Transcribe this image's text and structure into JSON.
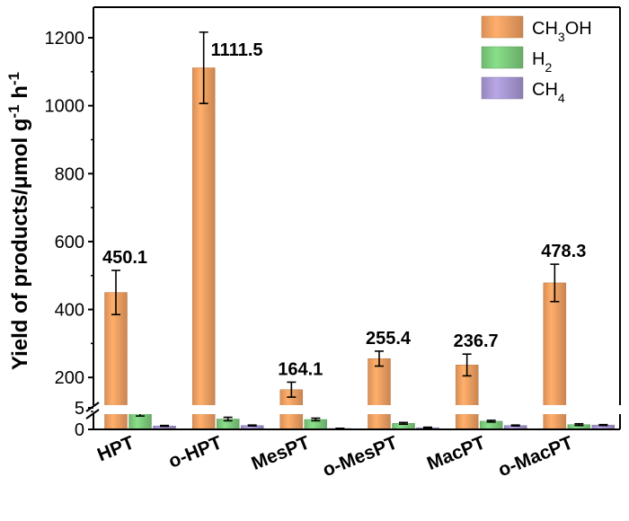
{
  "chart_data": {
    "type": "bar",
    "ylabel": "Yield of products/μmol g⁻¹ h⁻¹",
    "ylabel_parts": [
      {
        "text": "Yield of products/μmol g"
      },
      {
        "text": "-1",
        "sup": true
      },
      {
        "text": " h"
      },
      {
        "text": "-1",
        "sup": true
      }
    ],
    "categories": [
      "HPT",
      "o-HPT",
      "MesPT",
      "o-MesPT",
      "MacPT",
      "o-MacPT"
    ],
    "series": [
      {
        "name": "CH3OH",
        "name_parts": [
          {
            "text": "CH"
          },
          {
            "text": "3",
            "sub": true
          },
          {
            "text": "OH"
          }
        ],
        "color": "#f5a263",
        "values": [
          450.1,
          1111.5,
          164.1,
          255.4,
          236.7,
          478.3
        ],
        "errors": [
          65,
          105,
          22,
          22,
          32,
          55
        ],
        "labels": [
          "450.1",
          "1111.5",
          "164.1",
          "255.4",
          "236.7",
          "478.3"
        ]
      },
      {
        "name": "H2",
        "name_parts": [
          {
            "text": "H"
          },
          {
            "text": "2",
            "sub": true
          }
        ],
        "color": "#7fcf7f",
        "values": [
          3.6,
          2.4,
          2.3,
          1.4,
          1.9,
          1.1
        ],
        "errors": [
          0.5,
          0.4,
          0.3,
          0.2,
          0.2,
          0.2
        ]
      },
      {
        "name": "CH4",
        "name_parts": [
          {
            "text": "CH"
          },
          {
            "text": "4",
            "sub": true
          }
        ],
        "color": "#ab9ad6",
        "values": [
          0.8,
          0.9,
          0.2,
          0.4,
          0.9,
          1.0
        ],
        "errors": [
          0.1,
          0.1,
          0.05,
          0.1,
          0.1,
          0.1
        ]
      }
    ],
    "axis_break": [
      5,
      100
    ],
    "lower_ticks": [
      0,
      5
    ],
    "upper_ticks": [
      200,
      400,
      600,
      800,
      1000,
      1200
    ],
    "ylim": [
      0,
      1290
    ],
    "legend_position": "top-right",
    "grid": false
  }
}
